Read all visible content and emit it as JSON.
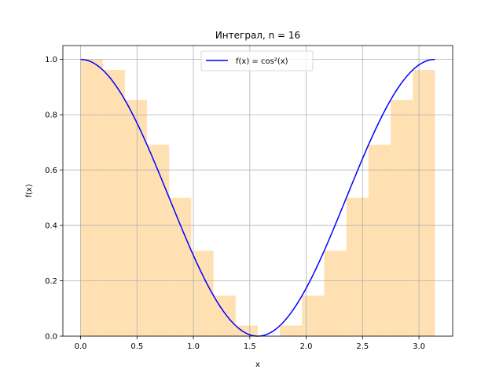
{
  "chart_data": {
    "type": "bar",
    "title": "Интеграл, n = 16",
    "xlabel": "x",
    "ylabel": "f(x)",
    "xlim": [
      -0.157,
      3.299
    ],
    "ylim": [
      0.0,
      1.05
    ],
    "xticks": [
      0.0,
      0.5,
      1.0,
      1.5,
      2.0,
      2.5,
      3.0
    ],
    "xtick_labels": [
      "0.0",
      "0.5",
      "1.0",
      "1.5",
      "2.0",
      "2.5",
      "3.0"
    ],
    "yticks": [
      0.0,
      0.2,
      0.4,
      0.6,
      0.8,
      1.0
    ],
    "ytick_labels": [
      "0.0",
      "0.2",
      "0.4",
      "0.6",
      "0.8",
      "1.0"
    ],
    "grid": true,
    "legend_position": "top-center",
    "bars": {
      "color": "#ffe0b2",
      "x_start": 0.0,
      "x_end": 3.14159,
      "count": 16,
      "values": [
        1.0,
        0.9619,
        0.8536,
        0.6913,
        0.5,
        0.3087,
        0.1464,
        0.0381,
        0.0,
        0.0381,
        0.1464,
        0.3087,
        0.5,
        0.6913,
        0.8536,
        0.9619
      ]
    },
    "series": [
      {
        "name": "f(x) = cos²(x)",
        "color": "#0000ff",
        "x_start": 0.0,
        "x_end": 3.14159,
        "function": "cos^2"
      }
    ]
  }
}
